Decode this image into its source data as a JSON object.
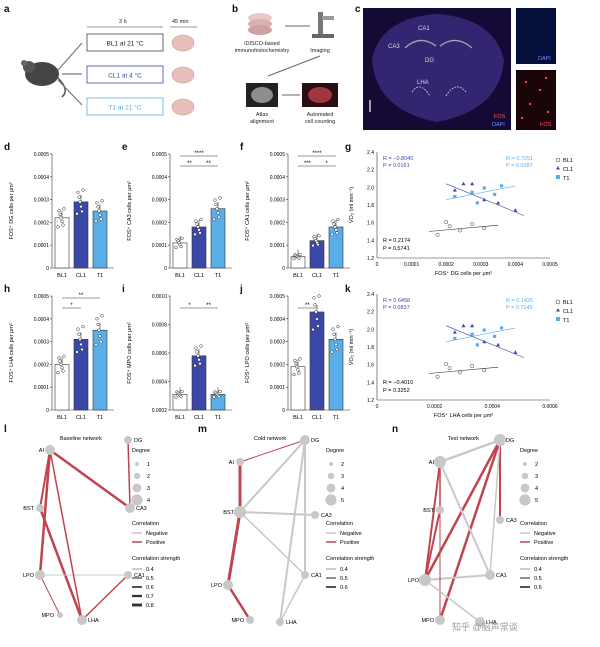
{
  "panels": {
    "a": {
      "label": "a",
      "time1": "3 h",
      "time2": "45 min",
      "conditions": [
        {
          "text": "BL1 at 21 °C",
          "color": "#222222",
          "border": "#444444"
        },
        {
          "text": "CL1 at 4 °C",
          "color": "#3b48a8",
          "border": "#3b48a8"
        },
        {
          "text": "T1 at 21 °C",
          "color": "#5aaee8",
          "border": "#5aaee8"
        }
      ]
    },
    "b": {
      "label": "b",
      "step1": "iDISCO-based",
      "step1b": "immunohistochemistry",
      "step2": "Imaging",
      "step3": "Atlas",
      "step3b": "alignment",
      "step4": "Automated",
      "step4b": "cell counting"
    },
    "c": {
      "label": "c",
      "regions": [
        "CA1",
        "CA3",
        "DG",
        "LHA"
      ],
      "stain_fos": "FOS",
      "stain_dapi": "DAPI",
      "inset1": "DAPI",
      "inset2": "FOS"
    },
    "bars": [
      {
        "label": "d",
        "ylabel": "FOS⁺ DG cells per μm²",
        "yticks": [
          "0",
          "0.0001",
          "0.0002",
          "0.0003",
          "0.0004",
          "0.0005"
        ],
        "ymax": 0.0005,
        "values": [
          0.00022,
          0.00029,
          0.00025
        ],
        "sig": []
      },
      {
        "label": "e",
        "ylabel": "FOS⁺ CA3 cells per μm²",
        "yticks": [
          "0",
          "0.0001",
          "0.0002",
          "0.0003",
          "0.0004",
          "0.0005"
        ],
        "ymax": 0.0005,
        "values": [
          0.00011,
          0.00018,
          0.00026
        ],
        "sig": [
          "**",
          "**",
          "****"
        ]
      },
      {
        "label": "f",
        "ylabel": "FOS⁺ CA1 cells per μm²",
        "yticks": [
          "0",
          "0.0001",
          "0.0002",
          "0.0003",
          "0.0004",
          "0.0005"
        ],
        "ymax": 0.0005,
        "values": [
          5e-05,
          0.00012,
          0.00018
        ],
        "sig": [
          "***",
          "*",
          "****"
        ]
      },
      {
        "label": "h",
        "ylabel": "FOS⁺ LHA cells per μm²",
        "yticks": [
          "0",
          "0.0001",
          "0.0002",
          "0.0003",
          "0.0004",
          "0.0005"
        ],
        "ymax": 0.0005,
        "values": [
          0.0002,
          0.00031,
          0.00035
        ],
        "sig": [
          "*",
          "",
          "**"
        ]
      },
      {
        "label": "i",
        "ylabel": "FOS⁺ MPO cells per μm²",
        "yticks": [
          "0.0002",
          "0.0004",
          "0.0006",
          "0.0008",
          "0.0010"
        ],
        "ymin": 0.0002,
        "ymax": 0.001,
        "values": [
          0.00031,
          0.00058,
          0.00031
        ],
        "sig": [
          "*",
          "**",
          ""
        ]
      },
      {
        "label": "j",
        "ylabel": "FOS⁺ LPO cells per μm²",
        "yticks": [
          "0",
          "0.0001",
          "0.0002",
          "0.0003",
          "0.0004",
          "0.0005"
        ],
        "ymax": 0.0005,
        "values": [
          0.00019,
          0.00043,
          0.00031
        ],
        "sig": [
          "**",
          "",
          ""
        ]
      }
    ],
    "groups": [
      "BL1",
      "CL1",
      "T1"
    ],
    "group_colors": {
      "BL1": "#ffffff",
      "CL1": "#3b48a8",
      "T1": "#5aaee8"
    },
    "scatter_g": {
      "label": "g",
      "xlabel": "FOS⁺ DG cells per μm²",
      "ylabel": "V̇O₂ (ml min⁻¹)",
      "xticks": [
        "0",
        "0.0001",
        "0.0002",
        "0.0003",
        "0.0004",
        "0.0005"
      ],
      "yticks": [
        "1.2",
        "1.4",
        "1.6",
        "1.8",
        "2.0",
        "2.2",
        "2.4"
      ],
      "stats": {
        "cl_r": "R = −0.8040",
        "cl_p": "P = 0.0161",
        "t_r": "R = 0.7251",
        "t_p": "P = 0.0287",
        "bl_r": "R = 0.2174",
        "bl_p": "P = 0.5741"
      }
    },
    "scatter_k": {
      "label": "k",
      "xlabel": "FOS⁺ LHA cells per μm²",
      "ylabel": "V̇O₂ (ml min⁻¹)",
      "xticks": [
        "0",
        "0.0002",
        "0.0004",
        "0.0006"
      ],
      "yticks": [
        "1.2",
        "1.4",
        "1.6",
        "1.8",
        "2.0",
        "2.2",
        "2.4"
      ],
      "stats": {
        "cl_r": "R = 0.6458",
        "cl_p": "P = 0.0837",
        "t_r": "R = 0.1425",
        "t_p": "P = 0.7145",
        "bl_r": "R = −0.4010",
        "bl_p": "P = 0.3252"
      }
    },
    "networks": [
      {
        "label": "l",
        "title": "Baseline network"
      },
      {
        "label": "m",
        "title": "Cold network"
      },
      {
        "label": "n",
        "title": "Test network"
      }
    ],
    "net_nodes": [
      "AI",
      "DG",
      "BST",
      "CA3",
      "LPO",
      "CA1",
      "MPO",
      "LHA"
    ],
    "legend": {
      "degree": "Degree",
      "correlation": "Correlation",
      "negative": "Negative",
      "positive": "Positive",
      "strength": "Correlation strength",
      "degree_l": [
        "1",
        "2",
        "3",
        "4"
      ],
      "degree_mn": [
        "2",
        "3",
        "4",
        "5"
      ],
      "strength_l": [
        "0.4",
        "0.5",
        "0.6",
        "0.7",
        "0.8"
      ],
      "strength_mn": [
        "0.4",
        "0.5",
        "0.6"
      ]
    },
    "watermark": "知乎 @脑声常谈",
    "colors": {
      "negative": "#c8c8c8",
      "positive": "#c0444e",
      "node": "#c8c8c8"
    }
  }
}
